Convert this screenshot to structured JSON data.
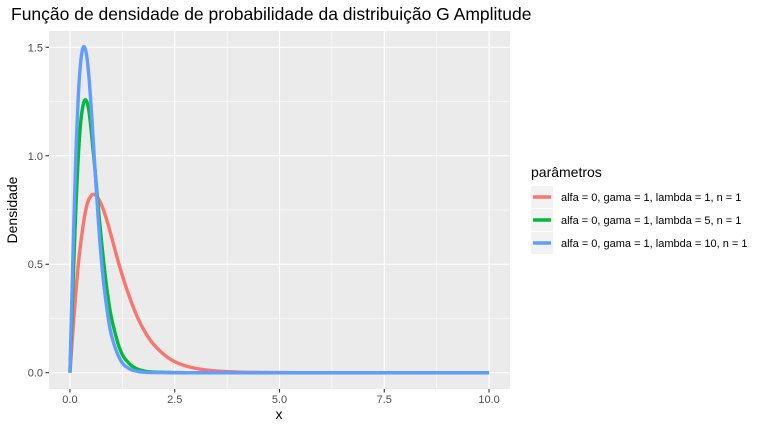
{
  "chart_data": {
    "type": "line",
    "title": "Função de densidade de probabilidade da distribuição G Amplitude",
    "xlabel": "x",
    "ylabel": "Densidade",
    "xlim": [
      -0.5,
      10.5
    ],
    "ylim": [
      -0.075,
      1.575
    ],
    "x_ticks": [
      0,
      2.5,
      5,
      7.5,
      10
    ],
    "x_tick_labels": [
      "0.0",
      "2.5",
      "5.0",
      "7.5",
      "10.0"
    ],
    "y_ticks": [
      0,
      0.5,
      1.0,
      1.5
    ],
    "y_tick_labels": [
      "0.0",
      "0.5",
      "1.0",
      "1.5"
    ],
    "grid": true,
    "background": "#ebebeb",
    "legend": {
      "title": "parâmetros",
      "position": "right"
    },
    "series": [
      {
        "name": "alfa = 0, gama = 1, lambda = 1, n = 1",
        "color": "#f8766d",
        "x": [
          0,
          0.1,
          0.2,
          0.3,
          0.4,
          0.5,
          0.6,
          0.7,
          0.8,
          0.9,
          1.0,
          1.2,
          1.4,
          1.6,
          1.8,
          2.0,
          2.3,
          2.6,
          3.0,
          3.5,
          4.0,
          5.0,
          6.0,
          8.0,
          10.0
        ],
        "values": [
          0,
          0.27,
          0.5,
          0.66,
          0.77,
          0.815,
          0.82,
          0.795,
          0.75,
          0.69,
          0.62,
          0.48,
          0.36,
          0.26,
          0.185,
          0.13,
          0.075,
          0.042,
          0.02,
          0.008,
          0.003,
          0.0005,
          0,
          0,
          0
        ]
      },
      {
        "name": "alfa = 0, gama = 1, lambda = 5, n = 1",
        "color": "#00ba38",
        "x": [
          0,
          0.05,
          0.1,
          0.15,
          0.2,
          0.25,
          0.3,
          0.35,
          0.4,
          0.45,
          0.5,
          0.6,
          0.7,
          0.8,
          0.9,
          1.0,
          1.2,
          1.4,
          1.6,
          1.8,
          2.0,
          2.5,
          3.0,
          4.0,
          6.0,
          10.0
        ],
        "values": [
          0,
          0.28,
          0.55,
          0.8,
          1.0,
          1.14,
          1.22,
          1.255,
          1.25,
          1.21,
          1.13,
          0.93,
          0.71,
          0.52,
          0.36,
          0.245,
          0.105,
          0.045,
          0.018,
          0.007,
          0.003,
          0.0005,
          0,
          0,
          0,
          0
        ]
      },
      {
        "name": "alfa = 0, gama = 1, lambda = 10, n = 1",
        "color": "#619cff",
        "x": [
          0,
          0.05,
          0.1,
          0.15,
          0.2,
          0.25,
          0.3,
          0.35,
          0.4,
          0.45,
          0.5,
          0.55,
          0.6,
          0.7,
          0.8,
          0.9,
          1.0,
          1.2,
          1.4,
          1.6,
          1.8,
          2.0,
          2.5,
          3.0,
          4.0,
          6.0,
          10.0
        ],
        "values": [
          0,
          0.38,
          0.74,
          1.05,
          1.28,
          1.42,
          1.49,
          1.5,
          1.46,
          1.37,
          1.24,
          1.09,
          0.93,
          0.64,
          0.42,
          0.27,
          0.165,
          0.06,
          0.02,
          0.007,
          0.002,
          0.0008,
          0,
          0,
          0,
          0,
          0
        ]
      }
    ]
  }
}
